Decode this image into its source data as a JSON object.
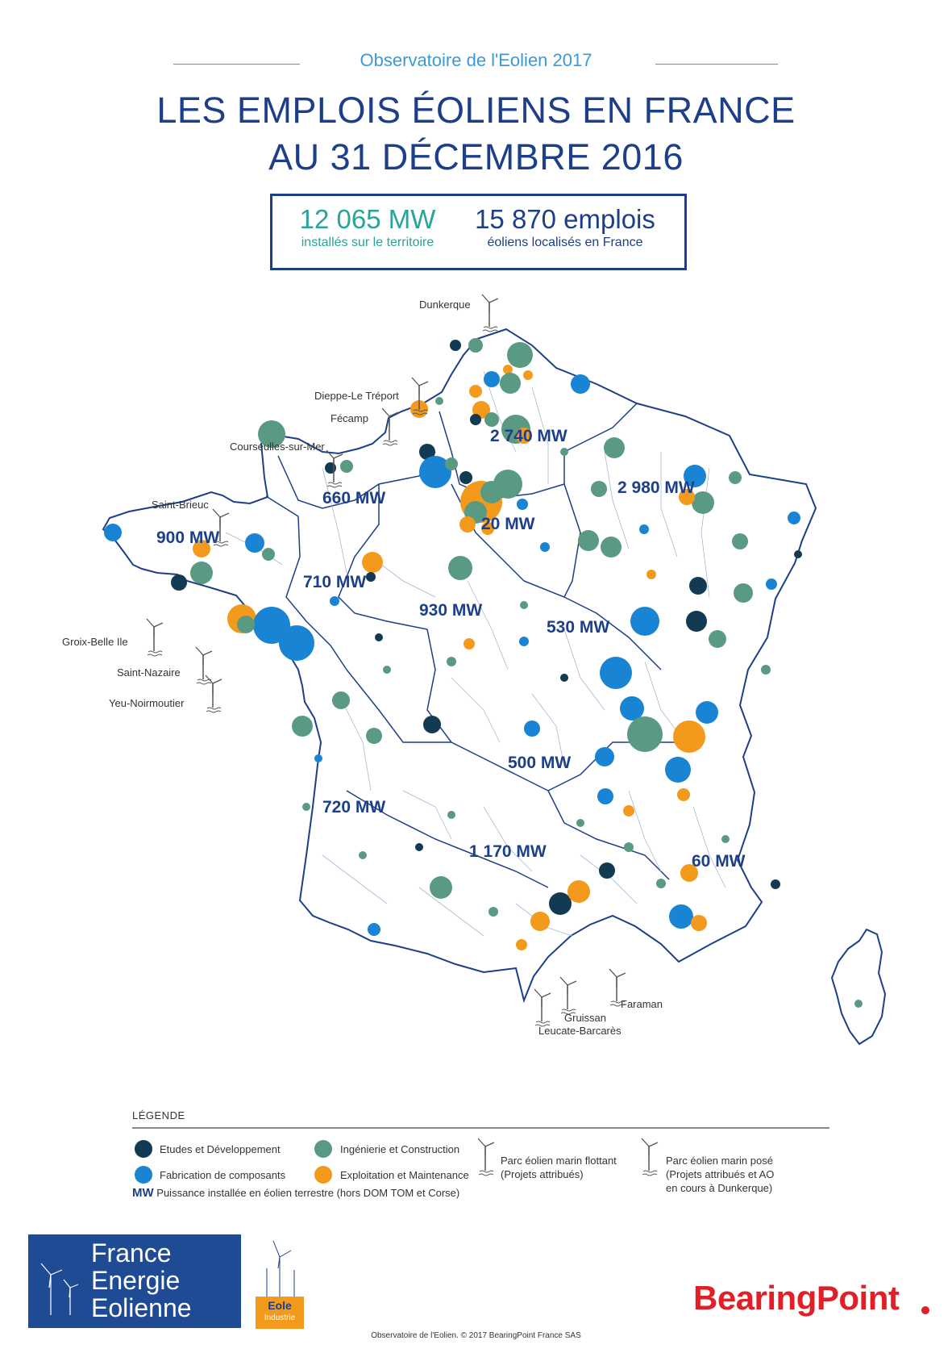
{
  "header": {
    "kicker": "Observatoire de l'Eolien 2017",
    "title_line1": "LES EMPLOIS ÉOLIENS EN FRANCE",
    "title_line2": "AU 31 DÉCEMBRE 2016"
  },
  "stats": {
    "mw_value": "12 065 MW",
    "mw_caption": "installés sur le territoire",
    "jobs_value": "15 870 emplois",
    "jobs_caption": "éoliens localisés en France"
  },
  "map": {
    "region_mw": [
      "2 740 MW",
      "2 980 MW",
      "660 MW",
      "20 MW",
      "900 MW",
      "710 MW",
      "930 MW",
      "530 MW",
      "500 MW",
      "720 MW",
      "1 170 MW",
      "60 MW"
    ],
    "offshore_sites": [
      "Dunkerque",
      "Dieppe-Le Tréport",
      "Fécamp",
      "Courseulles-sur-Mer",
      "Saint-Brieuc",
      "Groix-Belle Ile",
      "Saint-Nazaire",
      "Yeu-Noirmoutier",
      "Faraman",
      "Gruissan",
      "Leucate-Barcarès"
    ]
  },
  "legend": {
    "title": "LÉGENDE",
    "categories": [
      {
        "label": "Etudes et Développement",
        "color": "#123a52"
      },
      {
        "label": "Ingénierie et Construction",
        "color": "#5a9a82"
      },
      {
        "label": "Fabrication de composants",
        "color": "#1a84d4"
      },
      {
        "label": "Exploitation et Maintenance",
        "color": "#f39a1c"
      }
    ],
    "floating_label_1": "Parc éolien marin flottant",
    "floating_label_2": "(Projets attribués)",
    "fixed_label_1": "Parc éolien marin posé",
    "fixed_label_2": "(Projets attribués et AO",
    "fixed_label_3": "en cours à Dunkerque)",
    "mw_key": "MW",
    "mw_note": "Puissance installée en éolien terrestre (hors DOM TOM et Corse)"
  },
  "logos": {
    "fee_1": "France",
    "fee_2": "Energie",
    "fee_3": "Eolienne",
    "eole_1": "Eole",
    "eole_2": "Industrie",
    "bearingpoint": "BearingPoint"
  },
  "footer": {
    "credit": "Observatoire de l'Eolien. © 2017 BearingPoint France SAS"
  },
  "colors": {
    "navy": "#1d3f8a",
    "teal": "#2aa39a",
    "etudes": "#123a52",
    "ingenierie": "#5a9a82",
    "fabrication": "#1a84d4",
    "exploitation": "#f39a1c"
  }
}
